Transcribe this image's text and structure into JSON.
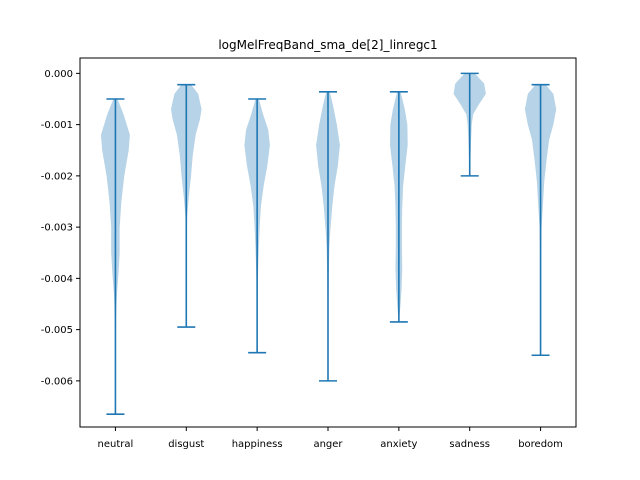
{
  "chart_data": {
    "type": "violin",
    "title": "logMelFreqBand_sma_de[2]_linregc1",
    "xlabel": "",
    "ylabel": "",
    "categories": [
      "neutral",
      "disgust",
      "happiness",
      "anger",
      "anxiety",
      "sadness",
      "boredom"
    ],
    "ylim": [
      -0.0069,
      0.0003
    ],
    "yticks": [
      0.0,
      -0.001,
      -0.002,
      -0.003,
      -0.004,
      -0.005,
      -0.006
    ],
    "ytick_labels": [
      "0.000",
      "-0.001",
      "-0.002",
      "-0.003",
      "-0.004",
      "-0.005",
      "-0.006"
    ],
    "grid": false,
    "colors": {
      "body": "#a9cbe3",
      "line": "#1f77b4"
    },
    "series": [
      {
        "category": "neutral",
        "min": -0.00665,
        "max": -0.0005,
        "density": [
          [
            -0.0005,
            0.12
          ],
          [
            -0.0008,
            0.48
          ],
          [
            -0.0012,
            0.85
          ],
          [
            -0.0015,
            0.78
          ],
          [
            -0.002,
            0.52
          ],
          [
            -0.0025,
            0.35
          ],
          [
            -0.003,
            0.25
          ],
          [
            -0.0035,
            0.25
          ],
          [
            -0.0039,
            0.18
          ],
          [
            -0.0043,
            0.09
          ],
          [
            -0.0047,
            0.04
          ],
          [
            -0.0052,
            0.015
          ],
          [
            -0.006,
            0.005
          ],
          [
            -0.00665,
            0.0
          ]
        ]
      },
      {
        "category": "disgust",
        "min": -0.00495,
        "max": -0.00022,
        "density": [
          [
            -0.00022,
            0.28
          ],
          [
            -0.0004,
            0.7
          ],
          [
            -0.0007,
            0.9
          ],
          [
            -0.0009,
            0.8
          ],
          [
            -0.0012,
            0.55
          ],
          [
            -0.0016,
            0.38
          ],
          [
            -0.002,
            0.28
          ],
          [
            -0.0024,
            0.15
          ],
          [
            -0.0028,
            0.05
          ],
          [
            -0.0033,
            0.02
          ],
          [
            -0.004,
            0.01
          ],
          [
            -0.00495,
            0.0
          ]
        ]
      },
      {
        "category": "happiness",
        "min": -0.00545,
        "max": -0.0005,
        "density": [
          [
            -0.0005,
            0.1
          ],
          [
            -0.0008,
            0.35
          ],
          [
            -0.0011,
            0.65
          ],
          [
            -0.0014,
            0.75
          ],
          [
            -0.0018,
            0.6
          ],
          [
            -0.0022,
            0.38
          ],
          [
            -0.0026,
            0.22
          ],
          [
            -0.003,
            0.15
          ],
          [
            -0.0034,
            0.1
          ],
          [
            -0.0038,
            0.06
          ],
          [
            -0.0042,
            0.03
          ],
          [
            -0.0048,
            0.01
          ],
          [
            -0.00545,
            0.0
          ]
        ]
      },
      {
        "category": "anger",
        "min": -0.006,
        "max": -0.00036,
        "density": [
          [
            -0.00036,
            0.1
          ],
          [
            -0.0006,
            0.28
          ],
          [
            -0.001,
            0.52
          ],
          [
            -0.0014,
            0.7
          ],
          [
            -0.0018,
            0.58
          ],
          [
            -0.0022,
            0.38
          ],
          [
            -0.0026,
            0.25
          ],
          [
            -0.003,
            0.15
          ],
          [
            -0.0034,
            0.08
          ],
          [
            -0.004,
            0.04
          ],
          [
            -0.0046,
            0.02
          ],
          [
            -0.0053,
            0.01
          ],
          [
            -0.006,
            0.0
          ]
        ]
      },
      {
        "category": "anxiety",
        "min": -0.00485,
        "max": -0.00036,
        "density": [
          [
            -0.00036,
            0.1
          ],
          [
            -0.0007,
            0.35
          ],
          [
            -0.001,
            0.5
          ],
          [
            -0.0014,
            0.52
          ],
          [
            -0.0018,
            0.38
          ],
          [
            -0.0022,
            0.25
          ],
          [
            -0.0026,
            0.2
          ],
          [
            -0.003,
            0.18
          ],
          [
            -0.0034,
            0.18
          ],
          [
            -0.0038,
            0.2
          ],
          [
            -0.0042,
            0.16
          ],
          [
            -0.0045,
            0.1
          ],
          [
            -0.0047,
            0.05
          ],
          [
            -0.00485,
            0.0
          ]
        ]
      },
      {
        "category": "sadness",
        "min": -0.002,
        "max": 0.0,
        "density": [
          [
            0.0,
            0.3
          ],
          [
            -0.0002,
            0.85
          ],
          [
            -0.0004,
            0.95
          ],
          [
            -0.0006,
            0.55
          ],
          [
            -0.0008,
            0.2
          ],
          [
            -0.001,
            0.12
          ],
          [
            -0.0013,
            0.08
          ],
          [
            -0.0016,
            0.05
          ],
          [
            -0.002,
            0.0
          ]
        ]
      },
      {
        "category": "boredom",
        "min": -0.0055,
        "max": -0.00022,
        "density": [
          [
            -0.00022,
            0.3
          ],
          [
            -0.0004,
            0.75
          ],
          [
            -0.0007,
            0.92
          ],
          [
            -0.001,
            0.75
          ],
          [
            -0.0013,
            0.5
          ],
          [
            -0.0017,
            0.35
          ],
          [
            -0.0021,
            0.22
          ],
          [
            -0.0025,
            0.15
          ],
          [
            -0.003,
            0.06
          ],
          [
            -0.0035,
            0.03
          ],
          [
            -0.0045,
            0.01
          ],
          [
            -0.0055,
            0.0
          ]
        ]
      }
    ]
  }
}
